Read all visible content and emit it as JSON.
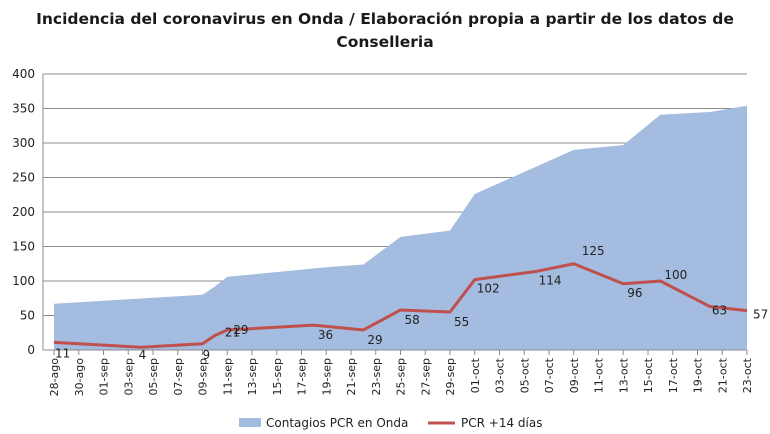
{
  "chart_data": {
    "type": "area",
    "title": "Incidencia del coronavirus en Onda / Elaboración propia a partir de los datos de",
    "subtitle": "Conselleria",
    "xlabel": "",
    "ylabel": "",
    "ylim": [
      0,
      400
    ],
    "yticks": [
      "0",
      "50",
      "100",
      "150",
      "200",
      "250",
      "300",
      "350",
      "400"
    ],
    "grid": true,
    "legend_position": "bottom",
    "x_tick_labels": [
      "28-ago",
      "30-ago",
      "01-sep",
      "03-sep",
      "05-sep",
      "07-sep",
      "09-sep",
      "11-sep",
      "13-sep",
      "15-sep",
      "17-sep",
      "19-sep",
      "21-sep",
      "23-sep",
      "25-sep",
      "27-sep",
      "29-sep",
      "01-oct",
      "03-oct",
      "05-oct",
      "07-oct",
      "09-oct",
      "11-oct",
      "13-oct",
      "15-oct",
      "17-oct",
      "19-oct",
      "21-oct",
      "23-oct"
    ],
    "series": [
      {
        "name": "Contagios PCR en Onda",
        "type": "area",
        "color": "#a4bcdf",
        "points": [
          [
            "28-ago",
            67
          ],
          [
            "09-sep",
            80
          ],
          [
            "10-sep",
            92
          ],
          [
            "11-sep",
            106
          ],
          [
            "19-sep",
            120
          ],
          [
            "22-sep",
            124
          ],
          [
            "25-sep",
            164
          ],
          [
            "29-sep",
            173
          ],
          [
            "01-oct",
            226
          ],
          [
            "09-oct",
            290
          ],
          [
            "13-oct",
            297
          ],
          [
            "16-oct",
            341
          ],
          [
            "20-oct",
            345
          ],
          [
            "23-oct",
            354
          ]
        ]
      },
      {
        "name": "PCR +14 días",
        "type": "line",
        "color": "#c0504d",
        "points": [
          [
            "28-ago",
            11
          ],
          [
            "04-sep",
            4
          ],
          [
            "09-sep",
            9
          ],
          [
            "10-sep",
            21
          ],
          [
            "11-sep",
            29
          ],
          [
            "18-sep",
            36
          ],
          [
            "22-sep",
            29
          ],
          [
            "25-sep",
            58
          ],
          [
            "29-sep",
            55
          ],
          [
            "01-oct",
            102
          ],
          [
            "06-oct",
            114
          ],
          [
            "09-oct",
            125
          ],
          [
            "13-oct",
            96
          ],
          [
            "16-oct",
            100
          ],
          [
            "20-oct",
            63
          ],
          [
            "23-oct",
            57
          ]
        ]
      }
    ]
  }
}
